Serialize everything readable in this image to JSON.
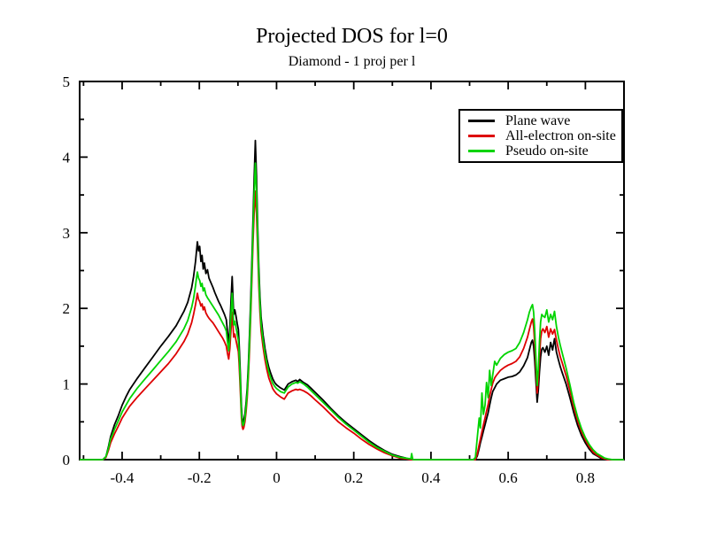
{
  "figure": {
    "title": "Projected DOS for l=0",
    "subtitle": "Diamond - 1 proj per l",
    "background_color": "#ffffff"
  },
  "legend": {
    "entries": [
      {
        "label": "Plane wave",
        "color": "#000000"
      },
      {
        "label": "All-electron on-site",
        "color": "#dd0000"
      },
      {
        "label": "Pseudo on-site",
        "color": "#00d400"
      }
    ]
  },
  "chart_data": {
    "type": "line",
    "title": "Projected DOS for l=0",
    "subtitle": "Diamond - 1 proj per l",
    "xlabel": "",
    "ylabel": "",
    "xlim": [
      -0.51,
      0.9
    ],
    "ylim": [
      0,
      5
    ],
    "grid": false,
    "legend_position": "upper-right-inside",
    "x_major_ticks": [
      -0.4,
      -0.2,
      0,
      0.2,
      0.4,
      0.6,
      0.8
    ],
    "x_major_tick_labels": [
      "-0.4",
      "-0.2",
      "0",
      "0.2",
      "0.4",
      "0.6",
      "0.8"
    ],
    "x_minor_ticks": [
      -0.5,
      -0.3,
      -0.1,
      0.1,
      0.3,
      0.5,
      0.7
    ],
    "y_major_ticks": [
      0,
      1,
      2,
      3,
      4,
      5
    ],
    "y_major_tick_labels": [
      "0",
      "1",
      "2",
      "3",
      "4",
      "5"
    ],
    "y_minor_ticks": [
      0.5,
      1.5,
      2.5,
      3.5,
      4.5
    ],
    "series_names": [
      "Plane wave",
      "All-electron on-site",
      "Pseudo on-site"
    ],
    "series_colors": [
      "#000000",
      "#dd0000",
      "#00d400"
    ],
    "points_format": [
      "x",
      "plane_wave",
      "all_electron_on_site",
      "pseudo_on_site"
    ],
    "points": [
      [
        -0.51,
        0,
        0,
        0
      ],
      [
        -0.45,
        0,
        0,
        0
      ],
      [
        -0.442,
        0.04,
        0.03,
        0.04
      ],
      [
        -0.435,
        0.18,
        0.13,
        0.16
      ],
      [
        -0.43,
        0.3,
        0.22,
        0.27
      ],
      [
        -0.425,
        0.38,
        0.28,
        0.33
      ],
      [
        -0.42,
        0.46,
        0.34,
        0.4
      ],
      [
        -0.41,
        0.58,
        0.44,
        0.51
      ],
      [
        -0.4,
        0.72,
        0.55,
        0.63
      ],
      [
        -0.39,
        0.83,
        0.63,
        0.72
      ],
      [
        -0.38,
        0.93,
        0.71,
        0.81
      ],
      [
        -0.36,
        1.08,
        0.83,
        0.95
      ],
      [
        -0.34,
        1.22,
        0.94,
        1.07
      ],
      [
        -0.32,
        1.36,
        1.05,
        1.19
      ],
      [
        -0.3,
        1.5,
        1.16,
        1.31
      ],
      [
        -0.28,
        1.63,
        1.27,
        1.43
      ],
      [
        -0.26,
        1.77,
        1.4,
        1.56
      ],
      [
        -0.24,
        1.96,
        1.56,
        1.73
      ],
      [
        -0.23,
        2.08,
        1.66,
        1.84
      ],
      [
        -0.22,
        2.27,
        1.81,
        2.01
      ],
      [
        -0.215,
        2.42,
        1.92,
        2.13
      ],
      [
        -0.21,
        2.62,
        2.05,
        2.3
      ],
      [
        -0.207,
        2.78,
        2.14,
        2.42
      ],
      [
        -0.205,
        2.88,
        2.2,
        2.48
      ],
      [
        -0.202,
        2.76,
        2.12,
        2.4
      ],
      [
        -0.199,
        2.82,
        2.09,
        2.37
      ],
      [
        -0.196,
        2.62,
        2.03,
        2.29
      ],
      [
        -0.193,
        2.7,
        2.06,
        2.33
      ],
      [
        -0.19,
        2.52,
        1.98,
        2.23
      ],
      [
        -0.187,
        2.6,
        2.02,
        2.27
      ],
      [
        -0.183,
        2.46,
        1.94,
        2.18
      ],
      [
        -0.179,
        2.51,
        1.9,
        2.14
      ],
      [
        -0.175,
        2.4,
        1.87,
        2.11
      ],
      [
        -0.17,
        2.34,
        1.84,
        2.07
      ],
      [
        -0.165,
        2.28,
        1.81,
        2.03
      ],
      [
        -0.16,
        2.21,
        1.77,
        1.99
      ],
      [
        -0.15,
        2.09,
        1.69,
        1.91
      ],
      [
        -0.145,
        2.04,
        1.65,
        1.86
      ],
      [
        -0.14,
        1.98,
        1.61,
        1.81
      ],
      [
        -0.135,
        1.92,
        1.56,
        1.76
      ],
      [
        -0.13,
        1.85,
        1.5,
        1.7
      ],
      [
        -0.127,
        1.68,
        1.4,
        1.55
      ],
      [
        -0.124,
        1.52,
        1.33,
        1.44
      ],
      [
        -0.121,
        1.75,
        1.47,
        1.62
      ],
      [
        -0.118,
        2.1,
        1.72,
        1.92
      ],
      [
        -0.115,
        2.42,
        1.95,
        2.2
      ],
      [
        -0.113,
        2.15,
        1.78,
        1.98
      ],
      [
        -0.111,
        1.92,
        1.62,
        1.78
      ],
      [
        -0.108,
        1.98,
        1.66,
        1.83
      ],
      [
        -0.105,
        1.9,
        1.58,
        1.75
      ],
      [
        -0.102,
        1.8,
        1.5,
        1.66
      ],
      [
        -0.099,
        1.72,
        1.43,
        1.58
      ],
      [
        -0.097,
        1.55,
        1.28,
        1.42
      ],
      [
        -0.095,
        1.3,
        1.05,
        1.18
      ],
      [
        -0.093,
        1.0,
        0.8,
        0.9
      ],
      [
        -0.091,
        0.7,
        0.55,
        0.62
      ],
      [
        -0.089,
        0.55,
        0.44,
        0.5
      ],
      [
        -0.087,
        0.5,
        0.4,
        0.45
      ],
      [
        -0.085,
        0.52,
        0.42,
        0.47
      ],
      [
        -0.082,
        0.6,
        0.5,
        0.55
      ],
      [
        -0.079,
        0.75,
        0.63,
        0.69
      ],
      [
        -0.076,
        0.95,
        0.82,
        0.88
      ],
      [
        -0.073,
        1.25,
        1.1,
        1.17
      ],
      [
        -0.07,
        1.65,
        1.45,
        1.55
      ],
      [
        -0.067,
        2.1,
        1.88,
        1.98
      ],
      [
        -0.064,
        2.6,
        2.35,
        2.47
      ],
      [
        -0.061,
        3.15,
        2.85,
        3.0
      ],
      [
        -0.058,
        3.7,
        3.25,
        3.5
      ],
      [
        -0.055,
        4.22,
        3.55,
        3.92
      ],
      [
        -0.052,
        3.75,
        3.25,
        3.55
      ],
      [
        -0.049,
        3.1,
        2.78,
        2.95
      ],
      [
        -0.046,
        2.55,
        2.3,
        2.43
      ],
      [
        -0.043,
        2.15,
        1.95,
        2.05
      ],
      [
        -0.04,
        1.88,
        1.7,
        1.79
      ],
      [
        -0.035,
        1.65,
        1.49,
        1.57
      ],
      [
        -0.03,
        1.47,
        1.32,
        1.4
      ],
      [
        -0.025,
        1.33,
        1.19,
        1.27
      ],
      [
        -0.02,
        1.22,
        1.08,
        1.16
      ],
      [
        -0.015,
        1.14,
        1.01,
        1.08
      ],
      [
        -0.01,
        1.07,
        0.94,
        1.01
      ],
      [
        -0.005,
        1.02,
        0.9,
        0.97
      ],
      [
        0.0,
        0.99,
        0.87,
        0.94
      ],
      [
        0.01,
        0.95,
        0.83,
        0.9
      ],
      [
        0.02,
        0.92,
        0.8,
        0.88
      ],
      [
        0.03,
        1.0,
        0.88,
        0.96
      ],
      [
        0.04,
        1.03,
        0.91,
        1.0
      ],
      [
        0.05,
        1.05,
        0.93,
        1.02
      ],
      [
        0.055,
        1.03,
        0.92,
        1.01
      ],
      [
        0.06,
        1.06,
        0.93,
        1.03
      ],
      [
        0.07,
        1.02,
        0.91,
        1.0
      ],
      [
        0.08,
        0.99,
        0.88,
        0.96
      ],
      [
        0.09,
        0.94,
        0.84,
        0.91
      ],
      [
        0.1,
        0.89,
        0.79,
        0.86
      ],
      [
        0.12,
        0.79,
        0.7,
        0.76
      ],
      [
        0.14,
        0.68,
        0.6,
        0.66
      ],
      [
        0.16,
        0.58,
        0.5,
        0.56
      ],
      [
        0.18,
        0.49,
        0.42,
        0.47
      ],
      [
        0.2,
        0.41,
        0.35,
        0.39
      ],
      [
        0.22,
        0.33,
        0.27,
        0.31
      ],
      [
        0.24,
        0.25,
        0.2,
        0.23
      ],
      [
        0.26,
        0.18,
        0.14,
        0.16
      ],
      [
        0.28,
        0.12,
        0.09,
        0.11
      ],
      [
        0.3,
        0.07,
        0.05,
        0.06
      ],
      [
        0.32,
        0.04,
        0.02,
        0.03
      ],
      [
        0.335,
        0.02,
        0.01,
        0.02
      ],
      [
        0.348,
        0.0,
        0.0,
        0.01
      ],
      [
        0.35,
        0.0,
        0.0,
        0.08
      ],
      [
        0.353,
        0.0,
        0.0,
        0.0
      ],
      [
        0.45,
        0,
        0,
        0
      ],
      [
        0.51,
        0,
        0,
        0
      ],
      [
        0.515,
        0.0,
        0.0,
        0.03
      ],
      [
        0.52,
        0.05,
        0.08,
        0.3
      ],
      [
        0.525,
        0.15,
        0.2,
        0.55
      ],
      [
        0.528,
        0.22,
        0.27,
        0.42
      ],
      [
        0.532,
        0.3,
        0.37,
        0.88
      ],
      [
        0.536,
        0.38,
        0.46,
        0.6
      ],
      [
        0.54,
        0.46,
        0.55,
        0.72
      ],
      [
        0.544,
        0.54,
        0.64,
        1.02
      ],
      [
        0.548,
        0.62,
        0.73,
        0.82
      ],
      [
        0.552,
        0.72,
        0.84,
        1.18
      ],
      [
        0.556,
        0.82,
        0.93,
        0.98
      ],
      [
        0.56,
        0.9,
        1.01,
        1.12
      ],
      [
        0.565,
        0.95,
        1.08,
        1.3
      ],
      [
        0.57,
        1.0,
        1.12,
        1.25
      ],
      [
        0.58,
        1.05,
        1.18,
        1.34
      ],
      [
        0.59,
        1.07,
        1.22,
        1.39
      ],
      [
        0.6,
        1.09,
        1.25,
        1.42
      ],
      [
        0.61,
        1.1,
        1.27,
        1.44
      ],
      [
        0.62,
        1.12,
        1.3,
        1.47
      ],
      [
        0.63,
        1.16,
        1.36,
        1.55
      ],
      [
        0.64,
        1.24,
        1.47,
        1.68
      ],
      [
        0.65,
        1.35,
        1.62,
        1.85
      ],
      [
        0.655,
        1.45,
        1.72,
        1.95
      ],
      [
        0.66,
        1.55,
        1.82,
        2.02
      ],
      [
        0.663,
        1.58,
        1.86,
        2.05
      ],
      [
        0.666,
        1.5,
        1.76,
        1.95
      ],
      [
        0.669,
        1.3,
        1.52,
        1.7
      ],
      [
        0.672,
        1.02,
        1.18,
        1.32
      ],
      [
        0.675,
        0.76,
        0.88,
        0.98
      ],
      [
        0.678,
        0.92,
        1.06,
        1.2
      ],
      [
        0.681,
        1.16,
        1.36,
        1.56
      ],
      [
        0.684,
        1.36,
        1.6,
        1.82
      ],
      [
        0.687,
        1.46,
        1.7,
        1.92
      ],
      [
        0.69,
        1.48,
        1.73,
        1.9
      ],
      [
        0.695,
        1.42,
        1.68,
        1.88
      ],
      [
        0.7,
        1.5,
        1.76,
        1.98
      ],
      [
        0.705,
        1.38,
        1.62,
        1.82
      ],
      [
        0.71,
        1.55,
        1.73,
        1.92
      ],
      [
        0.715,
        1.45,
        1.66,
        1.85
      ],
      [
        0.72,
        1.6,
        1.72,
        1.96
      ],
      [
        0.725,
        1.42,
        1.58,
        1.76
      ],
      [
        0.73,
        1.32,
        1.46,
        1.62
      ],
      [
        0.735,
        1.23,
        1.36,
        1.51
      ],
      [
        0.74,
        1.15,
        1.28,
        1.41
      ],
      [
        0.75,
        1.0,
        1.11,
        1.21
      ],
      [
        0.76,
        0.82,
        0.91,
        0.99
      ],
      [
        0.77,
        0.62,
        0.69,
        0.75
      ],
      [
        0.78,
        0.45,
        0.51,
        0.56
      ],
      [
        0.79,
        0.32,
        0.37,
        0.41
      ],
      [
        0.8,
        0.22,
        0.26,
        0.29
      ],
      [
        0.81,
        0.14,
        0.17,
        0.2
      ],
      [
        0.82,
        0.08,
        0.1,
        0.13
      ],
      [
        0.83,
        0.05,
        0.06,
        0.08
      ],
      [
        0.84,
        0.02,
        0.03,
        0.05
      ],
      [
        0.85,
        0.01,
        0.01,
        0.02
      ],
      [
        0.858,
        0.0,
        0.0,
        0.01
      ],
      [
        0.87,
        0,
        0,
        0
      ],
      [
        0.9,
        0,
        0,
        0
      ]
    ]
  }
}
